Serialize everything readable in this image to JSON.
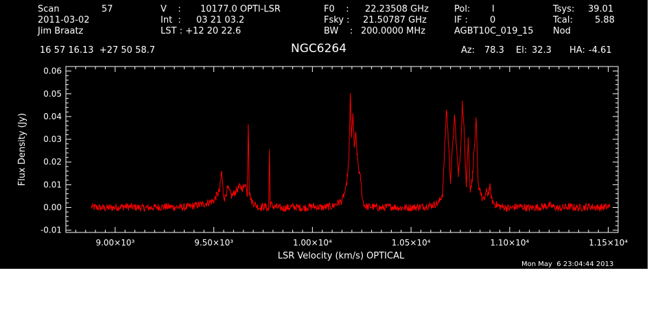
{
  "header": {
    "scan_label": "Scan",
    "scan_value": "57",
    "date": "2011-03-02",
    "observer": "Jim Braatz",
    "v_label": "V    :",
    "v_value": "10177.0 OPTI-LSR",
    "int_label": "Int  :",
    "int_value": "03 21 03.2",
    "lst_label": "LST : +12 20 22.6",
    "f0_label": "F0    :",
    "f0_value": "22.23508 GHz",
    "fsky_label": "Fsky :",
    "fsky_value": "21.50787 GHz",
    "bw_label": "BW    :",
    "bw_value": "200.0000 MHz",
    "pol_label": "Pol:",
    "pol_value": "I",
    "if_label": "IF :",
    "if_value": "0",
    "project": "AGBT10C_019_15",
    "tsys_label": "Tsys:",
    "tsys_value": "39.01",
    "tcal_label": "Tcal:",
    "tcal_value": "5.88",
    "proc": "Nod",
    "coords": "16 57 16.13  +27 50 58.7",
    "source": "NGC6264",
    "az_label": "Az:",
    "az_value": "78.3",
    "el_label": "El:",
    "el_value": "32.3",
    "ha_label": "HA:",
    "ha_value": "-4.61",
    "timestamp": "Mon May  6 23:04:44 2013"
  },
  "colors": {
    "background": "#000000",
    "axes": "#ffffff",
    "trace": "#ff0000"
  },
  "chart_data": {
    "type": "line",
    "title": "NGC6264",
    "xlabel": "LSR Velocity (km/s) OPTICAL",
    "ylabel": "Flux Density (Jy)",
    "xlim": [
      8750,
      11550
    ],
    "ylim": [
      -0.011,
      0.062
    ],
    "xticks": [
      9000,
      9500,
      10000,
      10500,
      11000,
      11500
    ],
    "xtick_labels": [
      "9.00×10³",
      "9.50×10³",
      "1.00×10⁴",
      "1.05×10⁴",
      "1.10×10⁴",
      "1.15×10⁴"
    ],
    "yticks": [
      -0.01,
      0.0,
      0.01,
      0.02,
      0.03,
      0.04,
      0.05,
      0.06
    ],
    "ytick_labels": [
      "-0.01",
      "0.00",
      "0.01",
      "0.02",
      "0.03",
      "0.04",
      "0.05",
      "0.06"
    ],
    "grid": false,
    "series": [
      {
        "x": [
          8880,
          8950,
          9050,
          9150,
          9250,
          9350,
          9450,
          9500,
          9530,
          9540,
          9548,
          9555,
          9570,
          9590,
          9610,
          9630,
          9650,
          9660,
          9670,
          9675,
          9680,
          9690,
          9710,
          9730,
          9760,
          9778,
          9782,
          9786,
          9800,
          9850,
          9900,
          9950,
          10000,
          10050,
          10100,
          10150,
          10170,
          10185,
          10192,
          10198,
          10205,
          10212,
          10220,
          10228,
          10236,
          10245,
          10255,
          10265,
          10280,
          10300,
          10350,
          10400,
          10450,
          10500,
          10550,
          10600,
          10640,
          10660,
          10680,
          10700,
          10720,
          10740,
          10750,
          10760,
          10770,
          10780,
          10790,
          10800,
          10810,
          10820,
          10830,
          10840,
          10850,
          10860,
          10870,
          10880,
          10890,
          10900,
          10910,
          10920,
          10935,
          10950,
          11000,
          11050,
          11100,
          11150,
          11200,
          11250,
          11300,
          11350,
          11400,
          11450,
          11510
        ],
        "y": [
          0.0002,
          -0.0003,
          0.0004,
          -0.0002,
          0.0003,
          0.0,
          0.0015,
          0.003,
          0.0075,
          0.016,
          0.006,
          0.004,
          0.0085,
          0.005,
          0.007,
          0.009,
          0.0085,
          0.011,
          0.0055,
          0.038,
          0.007,
          0.003,
          0.0012,
          0.0,
          0.0005,
          -0.001,
          0.025,
          0.0015,
          0.0005,
          -0.0004,
          0.0003,
          -0.0002,
          0.0004,
          0.0,
          0.0005,
          0.003,
          0.008,
          0.02,
          0.051,
          0.03,
          0.042,
          0.026,
          0.032,
          0.022,
          0.016,
          0.012,
          0.003,
          0.0008,
          0.0002,
          0.0004,
          -0.0003,
          0.0004,
          -0.0002,
          0.0,
          0.0003,
          0.0008,
          0.002,
          0.006,
          0.044,
          0.012,
          0.04,
          0.015,
          0.022,
          0.046,
          0.032,
          0.01,
          0.03,
          0.008,
          0.012,
          0.025,
          0.038,
          0.01,
          0.008,
          0.004,
          0.003,
          0.007,
          0.006,
          0.009,
          0.003,
          0.002,
          0.001,
          0.0005,
          -0.0004,
          0.0005,
          -0.0003,
          0.0002,
          0.0008,
          -0.0004,
          0.0003,
          -0.0002,
          0.0004,
          0.0,
          0.0003
        ]
      }
    ]
  }
}
